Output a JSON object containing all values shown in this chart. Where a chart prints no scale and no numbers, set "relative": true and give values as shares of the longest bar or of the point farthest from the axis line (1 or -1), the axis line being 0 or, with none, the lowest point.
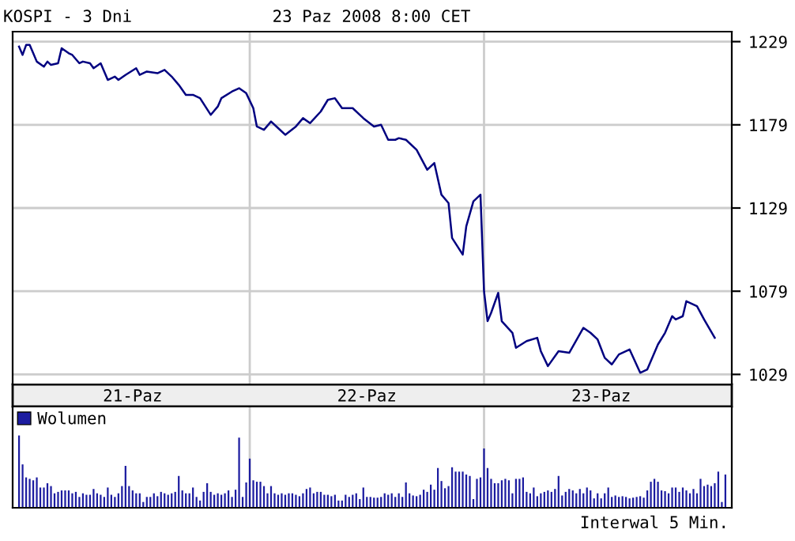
{
  "chart_data": [
    {
      "type": "line",
      "title": "KOSPI - 3 Dni",
      "subtitle": "23 Paz 2008 8:00 CET",
      "categories": [
        null,
        null,
        null,
        null,
        null,
        null,
        null,
        null,
        null,
        null,
        null,
        null,
        null,
        null,
        null,
        null,
        null,
        null,
        null,
        null,
        null,
        null,
        null,
        null,
        null,
        null,
        null,
        null,
        null,
        null,
        null,
        null,
        "21-Paz",
        null,
        null,
        null,
        null,
        null,
        null,
        null,
        null,
        null,
        null,
        null,
        null,
        null,
        null,
        null,
        null,
        null,
        null,
        null,
        null,
        null,
        null,
        null,
        null,
        null,
        null,
        null,
        null,
        null,
        null,
        null,
        null,
        null,
        null,
        null,
        null,
        null,
        null,
        null,
        null,
        null,
        null,
        null,
        null,
        null,
        null,
        null,
        null,
        null,
        null,
        null,
        null,
        null,
        null,
        null,
        null,
        null,
        null,
        null,
        null,
        null,
        null,
        null,
        null,
        null,
        "22-Paz",
        null,
        null,
        null,
        null,
        null,
        null,
        null,
        null,
        null,
        null,
        null,
        null,
        null,
        null,
        null,
        null,
        null,
        null,
        null,
        null,
        null,
        null,
        null,
        null,
        null,
        null,
        null,
        null,
        null,
        null,
        null,
        null,
        null,
        null,
        null,
        null,
        null,
        null,
        null,
        null,
        null,
        null,
        null,
        null,
        null,
        null,
        null,
        null,
        null,
        null,
        null,
        null,
        null,
        null,
        null,
        null,
        null,
        null,
        null,
        null,
        null,
        null,
        null,
        null,
        null,
        "23-Paz",
        null,
        null,
        null,
        null,
        null,
        null,
        null,
        null,
        null,
        null,
        null,
        null,
        null,
        null,
        null,
        null,
        null,
        null,
        null,
        null,
        null,
        null,
        null,
        null,
        null,
        null,
        null,
        null,
        null,
        null,
        null,
        null,
        null,
        null,
        null
      ],
      "series": [
        {
          "color": "#000080",
          "values": [
            1226,
            1221,
            1227,
            1227,
            1222,
            1217,
            null,
            1214,
            1217,
            1215,
            null,
            1216,
            1225,
            null,
            1222,
            1221,
            null,
            1216,
            1217,
            null,
            1216,
            1213,
            null,
            1216,
            null,
            1206,
            null,
            1208,
            1206,
            null,
            1209,
            null,
            null,
            1213,
            1209,
            null,
            1211,
            null,
            null,
            1210,
            null,
            1212,
            null,
            1208,
            null,
            1203,
            null,
            1197,
            null,
            1197,
            null,
            1195,
            null,
            null,
            1185,
            null,
            1190,
            1195,
            null,
            null,
            1199,
            null,
            1201,
            null,
            1198,
            null,
            1189,
            1178,
            null,
            1176,
            null,
            1181,
            null,
            1177,
            null,
            1173,
            null,
            null,
            1178,
            null,
            1183,
            null,
            1180,
            null,
            null,
            1187,
            null,
            1194,
            null,
            1195,
            null,
            1189,
            null,
            null,
            1189,
            null,
            null,
            1183,
            null,
            null,
            1178,
            null,
            1179,
            null,
            1170,
            null,
            1170,
            1171,
            null,
            1170,
            null,
            null,
            1164,
            null,
            null,
            1152,
            null,
            1156,
            null,
            1137,
            null,
            1132,
            1111,
            null,
            null,
            1101,
            1118,
            null,
            1133,
            null,
            1137,
            1079,
            1061,
            1066,
            null,
            1078,
            1061,
            null,
            null,
            1054,
            1045,
            null,
            null,
            1049,
            null,
            null,
            1051,
            1043,
            null,
            1034,
            null,
            null,
            1043,
            null,
            null,
            1042,
            null,
            null,
            null,
            1057,
            null,
            1054,
            null,
            1050,
            null,
            1039,
            null,
            1035,
            null,
            1041,
            null,
            null,
            1044,
            null,
            null,
            1030,
            null,
            1032,
            null,
            null,
            1047,
            null,
            1054,
            null,
            1064,
            1062,
            null,
            1064,
            1073,
            null,
            null,
            1070,
            null,
            1062,
            null,
            null,
            1051,
            null,
            null,
            null
          ]
        }
      ],
      "ylim": [
        1023,
        1235
      ],
      "yticks": [
        1029,
        1079,
        1129,
        1179,
        1229
      ],
      "grid": "y"
    },
    {
      "type": "bar",
      "relative": true,
      "legend": "top left",
      "annotations": [
        "Interwal 5 Min."
      ],
      "categories": [
        null,
        null,
        null,
        null,
        null,
        null,
        null,
        null,
        null,
        null,
        null,
        null,
        null,
        null,
        null,
        null,
        null,
        null,
        null,
        null,
        null,
        null,
        null,
        null,
        null,
        null,
        null,
        null,
        null,
        null,
        null,
        null,
        null,
        null,
        null,
        null,
        null,
        null,
        null,
        null,
        null,
        null,
        null,
        null,
        null,
        null,
        null,
        null,
        null,
        null,
        null,
        null,
        null,
        null,
        null,
        null,
        null,
        null,
        null,
        null,
        null,
        null,
        null,
        null,
        null,
        null,
        null,
        null,
        null,
        null,
        null,
        null,
        null,
        null,
        null,
        null,
        null,
        null,
        null,
        null,
        null,
        null,
        null,
        null,
        null,
        null,
        null,
        null,
        null,
        null,
        null,
        null,
        null,
        null,
        null,
        null,
        null,
        null,
        null,
        null,
        null,
        null,
        null,
        null,
        null,
        null,
        null,
        null,
        null,
        null,
        null,
        null,
        null,
        null,
        null,
        null,
        null,
        null,
        null,
        null,
        null,
        null,
        null,
        null,
        null,
        null,
        null,
        null,
        null,
        null,
        null,
        null,
        null,
        null,
        null,
        null,
        null,
        null,
        null,
        null,
        null,
        null,
        null,
        null,
        null,
        null,
        null,
        null,
        null,
        null,
        null,
        null,
        null,
        null,
        null,
        null,
        null,
        null,
        null,
        null,
        null,
        null,
        null,
        null,
        null,
        null,
        null,
        null,
        null,
        null,
        null,
        null,
        null,
        null,
        null,
        null,
        null,
        null,
        null,
        null,
        null,
        null,
        null,
        null,
        null,
        null,
        null,
        null,
        null,
        null,
        null,
        null,
        null,
        null,
        null,
        null,
        null,
        null,
        null,
        null
      ],
      "series": [
        {
          "name": "Wolumen",
          "color": "#1c1ca0",
          "values": [
            1.0,
            0.6,
            0.42,
            0.4,
            0.38,
            0.42,
            0.28,
            0.28,
            0.34,
            0.3,
            0.2,
            0.22,
            0.24,
            0.24,
            0.24,
            0.2,
            0.22,
            0.15,
            0.2,
            0.18,
            0.18,
            0.26,
            0.2,
            0.18,
            0.15,
            0.28,
            0.18,
            0.15,
            0.2,
            0.3,
            0.58,
            0.3,
            0.24,
            0.2,
            0.2,
            0.08,
            0.15,
            0.15,
            0.2,
            0.16,
            0.22,
            0.2,
            0.18,
            0.2,
            0.22,
            0.44,
            0.24,
            0.2,
            0.2,
            0.28,
            0.15,
            0.1,
            0.22,
            0.34,
            0.22,
            0.18,
            0.2,
            0.18,
            0.2,
            0.24,
            0.15,
            0.25,
            0.97,
            0.15,
            0.35,
            0.68,
            0.38,
            0.36,
            0.36,
            0.3,
            0.2,
            0.3,
            0.2,
            0.18,
            0.2,
            0.18,
            0.2,
            0.2,
            0.18,
            0.16,
            0.2,
            0.26,
            0.28,
            0.2,
            0.22,
            0.22,
            0.18,
            0.18,
            0.16,
            0.18,
            0.1,
            0.1,
            0.18,
            0.15,
            0.18,
            0.2,
            0.12,
            0.28,
            0.15,
            0.15,
            0.14,
            0.14,
            0.15,
            0.2,
            0.18,
            0.2,
            0.15,
            0.2,
            0.15,
            0.35,
            0.2,
            0.17,
            0.16,
            0.18,
            0.25,
            0.22,
            0.32,
            0.25,
            0.55,
            0.37,
            0.27,
            0.3,
            0.56,
            0.5,
            0.5,
            0.5,
            0.46,
            0.44,
            0.12,
            0.4,
            0.42,
            0.82,
            0.55,
            0.4,
            0.34,
            0.34,
            0.38,
            0.4,
            0.38,
            0.2,
            0.4,
            0.4,
            0.42,
            0.22,
            0.2,
            0.28,
            0.16,
            0.2,
            0.22,
            0.24,
            0.22,
            0.26,
            0.44,
            0.17,
            0.22,
            0.26,
            0.24,
            0.2,
            0.26,
            0.2,
            0.28,
            0.24,
            0.13,
            0.2,
            0.13,
            0.2,
            0.28,
            0.15,
            0.17,
            0.15,
            0.16,
            0.15,
            0.13,
            0.14,
            0.15,
            0.16,
            0.14,
            0.24,
            0.36,
            0.4,
            0.36,
            0.24,
            0.23,
            0.2,
            0.28,
            0.28,
            0.22,
            0.28,
            0.24,
            0.2,
            0.26,
            0.2,
            0.4,
            0.3,
            0.32,
            0.3,
            0.34,
            0.5,
            0.08,
            0.46
          ]
        }
      ]
    }
  ]
}
